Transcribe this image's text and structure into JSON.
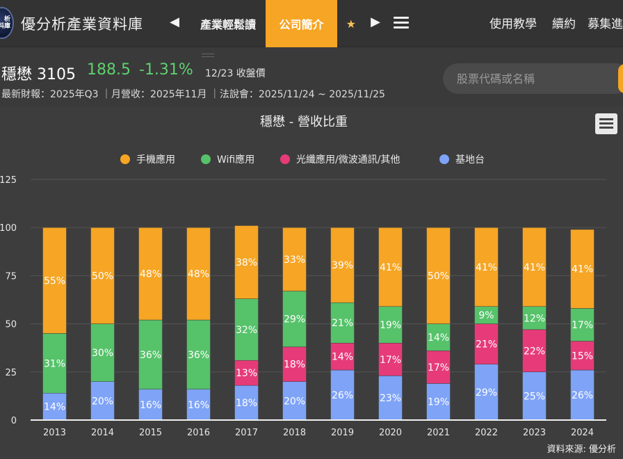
{
  "nav": {
    "logo_text_1": "析",
    "logo_text_2": "料庫",
    "site_title": "優分析產業資料庫",
    "left_arrow": "◀",
    "right_arrow": "▶",
    "tabs": [
      {
        "label": "產業輕鬆讀"
      },
      {
        "label": "公司簡介"
      },
      {
        "label": "★"
      }
    ],
    "right_links": [
      "使用教學",
      "續約",
      "募集進"
    ]
  },
  "stock": {
    "name": "穩懋 3105",
    "price": "188.5",
    "change": "-1.31%",
    "date": "12/23 收盤價",
    "info": "最新財報：2025年Q3 ｜月營收：2025年11月 ｜法說會：2025/11/24 ~ 2025/11/25",
    "price_color": "#5fd06e"
  },
  "search": {
    "placeholder": "股票代碼或名稱"
  },
  "chart_data": {
    "type": "bar",
    "stacked": true,
    "title": "穩懋 - 營收比重",
    "categories": [
      "2013",
      "2014",
      "2015",
      "2016",
      "2017",
      "2018",
      "2019",
      "2020",
      "2021",
      "2022",
      "2023",
      "2024"
    ],
    "ylim": [
      0,
      125
    ],
    "yticks": [
      0,
      25,
      50,
      75,
      100,
      125
    ],
    "legend_position": "top-center",
    "series": [
      {
        "name": "基地台",
        "color": "#7ea3f7",
        "values": [
          14,
          20,
          16,
          16,
          18,
          20,
          26,
          23,
          19,
          29,
          25,
          26
        ]
      },
      {
        "name": "光纖應用/微波通訊/其他",
        "color": "#e63b78",
        "values": [
          0,
          0,
          0,
          0,
          13,
          18,
          14,
          17,
          17,
          21,
          22,
          15
        ]
      },
      {
        "name": "Wifi應用",
        "color": "#56c26a",
        "values": [
          31,
          30,
          36,
          36,
          32,
          29,
          21,
          19,
          14,
          9,
          12,
          17
        ]
      },
      {
        "name": "手機應用",
        "color": "#f6a524",
        "values": [
          55,
          50,
          48,
          48,
          38,
          33,
          39,
          41,
          50,
          41,
          41,
          41
        ]
      }
    ],
    "legend_order": [
      "手機應用",
      "Wifi應用",
      "光纖應用/微波通訊/其他",
      "基地台"
    ],
    "source": "資料來源: 優分析"
  }
}
